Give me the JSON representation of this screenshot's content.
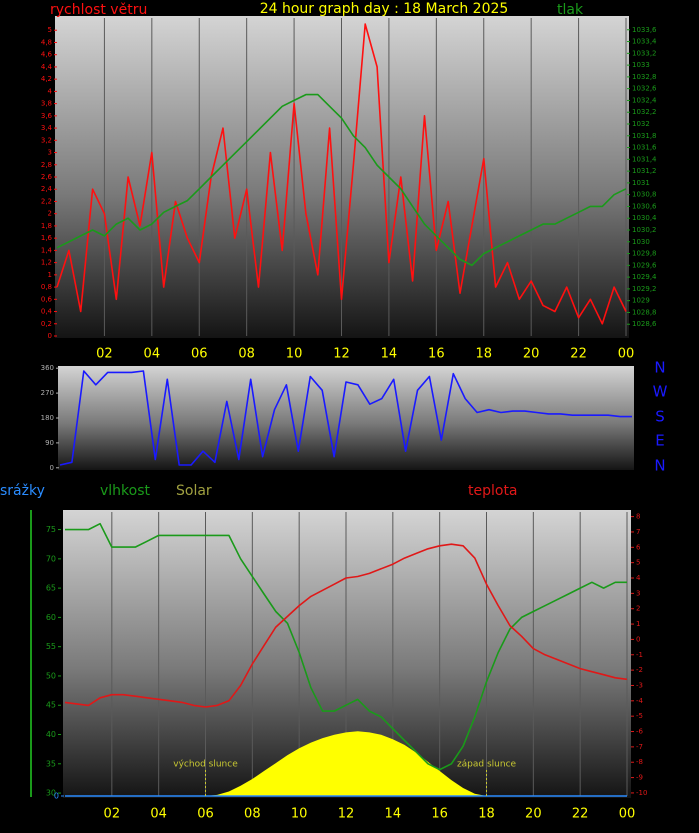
{
  "chart_data": [
    {
      "type": "line",
      "title": "24 hour graph day : 18 March 2025",
      "title_color": "#ffff00",
      "x": [
        0,
        0.5,
        1,
        1.5,
        2,
        2.5,
        3,
        3.5,
        4,
        4.5,
        5,
        5.5,
        6,
        6.5,
        7,
        7.5,
        8,
        8.5,
        9,
        9.5,
        10,
        10.5,
        11,
        11.5,
        12,
        12.5,
        13,
        13.5,
        14,
        14.5,
        15,
        15.5,
        16,
        16.5,
        17,
        17.5,
        18,
        18.5,
        19,
        19.5,
        20,
        20.5,
        21,
        21.5,
        22,
        22.5,
        23,
        23.5,
        24
      ],
      "xlim": [
        0,
        24
      ],
      "xticks": [
        {
          "value": 2,
          "label": "02"
        },
        {
          "value": 4,
          "label": "04"
        },
        {
          "value": 6,
          "label": "06"
        },
        {
          "value": 8,
          "label": "08"
        },
        10,
        12,
        14,
        16,
        18,
        20,
        22,
        {
          "value": 24,
          "label": "00"
        }
      ],
      "xtick_color": "#ffff00",
      "grid": true,
      "ylim": [
        0,
        5.2
      ],
      "yticks": [
        0,
        {
          "value": 0.2,
          "label": "0,2"
        },
        {
          "value": 0.4,
          "label": "0,4"
        },
        {
          "value": 0.6,
          "label": "0,6"
        },
        {
          "value": 0.8,
          "label": "0,8"
        },
        1,
        {
          "value": 1.2,
          "label": "1,2"
        },
        {
          "value": 1.4,
          "label": "1,4"
        },
        {
          "value": 1.6,
          "label": "1,6"
        },
        {
          "value": 1.8,
          "label": "1,8"
        },
        2,
        {
          "value": 2.2,
          "label": "2,2"
        },
        {
          "value": 2.4,
          "label": "2,4"
        },
        {
          "value": 2.6,
          "label": "2,6"
        },
        {
          "value": 2.8,
          "label": "2,8"
        },
        3,
        {
          "value": 3.2,
          "label": "3,2"
        },
        {
          "value": 3.4,
          "label": "3,4"
        },
        {
          "value": 3.6,
          "label": "3,6"
        },
        {
          "value": 3.8,
          "label": "3,8"
        },
        4,
        {
          "value": 4.2,
          "label": "4,2"
        },
        {
          "value": 4.4,
          "label": "4,4"
        },
        {
          "value": 4.6,
          "label": "4,6"
        },
        {
          "value": 4.8,
          "label": "4,8"
        },
        5
      ],
      "y2lim": [
        1028.4,
        1033.8
      ],
      "y2ticks": [
        {
          "value": 1028.6,
          "label": "1028,6"
        },
        {
          "value": 1028.8,
          "label": "1028,8"
        },
        1029,
        {
          "value": 1029.2,
          "label": "1029,2"
        },
        {
          "value": 1029.4,
          "label": "1029,4"
        },
        {
          "value": 1029.6,
          "label": "1029,6"
        },
        {
          "value": 1029.8,
          "label": "1029,8"
        },
        1030,
        {
          "value": 1030.2,
          "label": "1030,2"
        },
        {
          "value": 1030.4,
          "label": "1030,4"
        },
        {
          "value": 1030.6,
          "label": "1030,6"
        },
        {
          "value": 1030.8,
          "label": "1030,8"
        },
        1031,
        {
          "value": 1031.2,
          "label": "1031,2"
        },
        {
          "value": 1031.4,
          "label": "1031,4"
        },
        {
          "value": 1031.6,
          "label": "1031,6"
        },
        {
          "value": 1031.8,
          "label": "1031,8"
        },
        1032,
        {
          "value": 1032.2,
          "label": "1032,2"
        },
        {
          "value": 1032.4,
          "label": "1032,4"
        },
        {
          "value": 1032.6,
          "label": "1032,6"
        },
        {
          "value": 1032.8,
          "label": "1032,8"
        },
        1033,
        {
          "value": 1033.2,
          "label": "1033,2"
        },
        {
          "value": 1033.4,
          "label": "1033,4"
        },
        {
          "value": 1033.6,
          "label": "1033,6"
        }
      ],
      "series": [
        {
          "name": "rychlost větru",
          "color": "#ff1010",
          "axis": "y",
          "values": [
            0.8,
            1.4,
            0.4,
            2.4,
            2.0,
            0.6,
            2.6,
            1.8,
            3.0,
            0.8,
            2.2,
            1.6,
            1.2,
            2.6,
            3.4,
            1.6,
            2.4,
            0.8,
            3.0,
            1.4,
            3.8,
            2.0,
            1.0,
            3.4,
            0.6,
            2.8,
            5.1,
            4.4,
            1.2,
            2.6,
            0.9,
            3.6,
            1.4,
            2.2,
            0.7,
            1.8,
            2.9,
            0.8,
            1.2,
            0.6,
            0.9,
            0.5,
            0.4,
            0.8,
            0.3,
            0.6,
            0.2,
            0.8,
            0.4
          ]
        },
        {
          "name": "tlak",
          "color": "#1a9a1a",
          "axis": "y2",
          "values": [
            1029.9,
            1030.0,
            1030.1,
            1030.2,
            1030.1,
            1030.3,
            1030.4,
            1030.2,
            1030.3,
            1030.5,
            1030.6,
            1030.7,
            1030.9,
            1031.1,
            1031.3,
            1031.5,
            1031.7,
            1031.9,
            1032.1,
            1032.3,
            1032.4,
            1032.5,
            1032.5,
            1032.3,
            1032.1,
            1031.8,
            1031.6,
            1031.3,
            1031.1,
            1030.9,
            1030.6,
            1030.3,
            1030.1,
            1029.9,
            1029.7,
            1029.6,
            1029.8,
            1029.9,
            1030.0,
            1030.1,
            1030.2,
            1030.3,
            1030.3,
            1030.4,
            1030.5,
            1030.6,
            1030.6,
            1030.8,
            1030.9
          ]
        }
      ]
    },
    {
      "type": "line",
      "x": [
        0,
        0.5,
        1,
        1.5,
        2,
        2.5,
        3,
        3.5,
        4,
        4.5,
        5,
        5.5,
        6,
        6.5,
        7,
        7.5,
        8,
        8.5,
        9,
        9.5,
        10,
        10.5,
        11,
        11.5,
        12,
        12.5,
        13,
        13.5,
        14,
        14.5,
        15,
        15.5,
        16,
        16.5,
        17,
        17.5,
        18,
        18.5,
        19,
        19.5,
        20,
        20.5,
        21,
        21.5,
        22,
        22.5,
        23,
        23.5,
        24
      ],
      "xlim": [
        0,
        24
      ],
      "ylim": [
        -8,
        368
      ],
      "yticks": [
        0,
        90,
        180,
        270,
        360
      ],
      "ytick_color": "#b0b0b0",
      "compass": [
        "N",
        "W",
        "S",
        "E",
        "N"
      ],
      "compass_color": "#1a1aff",
      "series": [
        {
          "color": "#1a1aff",
          "axis": "y",
          "values": [
            10,
            20,
            350,
            300,
            345,
            345,
            345,
            350,
            30,
            320,
            10,
            10,
            60,
            20,
            240,
            30,
            320,
            40,
            210,
            300,
            60,
            330,
            280,
            40,
            310,
            300,
            230,
            250,
            320,
            60,
            280,
            330,
            100,
            340,
            250,
            200,
            210,
            200,
            205,
            205,
            200,
            195,
            195,
            190,
            190,
            190,
            190,
            185,
            185
          ]
        }
      ]
    },
    {
      "type": "line",
      "x": [
        0,
        0.5,
        1,
        1.5,
        2,
        2.5,
        3,
        3.5,
        4,
        4.5,
        5,
        5.5,
        6,
        6.5,
        7,
        7.5,
        8,
        8.5,
        9,
        9.5,
        10,
        10.5,
        11,
        11.5,
        12,
        12.5,
        13,
        13.5,
        14,
        14.5,
        15,
        15.5,
        16,
        16.5,
        17,
        17.5,
        18,
        18.5,
        19,
        19.5,
        20,
        20.5,
        21,
        21.5,
        22,
        22.5,
        23,
        23.5,
        24
      ],
      "xlim": [
        0,
        24
      ],
      "xticks": [
        {
          "value": 2,
          "label": "02"
        },
        {
          "value": 4,
          "label": "04"
        },
        {
          "value": 6,
          "label": "06"
        },
        {
          "value": 8,
          "label": "08"
        },
        10,
        12,
        14,
        16,
        18,
        20,
        22,
        {
          "value": 24,
          "label": "00"
        }
      ],
      "xtick_color": "#ffff00",
      "grid": true,
      "ylim": [
        29.5,
        78
      ],
      "yticks": [
        30,
        35,
        40,
        45,
        50,
        55,
        60,
        65,
        70,
        75
      ],
      "y2lim": [
        -10.2,
        8.3
      ],
      "y2ticks": [
        -10,
        -9,
        -8,
        -7,
        -6,
        -5,
        -4,
        -3,
        -2,
        -1,
        0,
        1,
        2,
        3,
        4,
        5,
        6,
        7,
        8
      ],
      "y3lim": [
        0,
        10
      ],
      "y3ticks": [
        0
      ],
      "y4lim": [
        0,
        2500
      ],
      "annotations": [
        {
          "text": "východ slunce",
          "x": 6
        },
        {
          "text": "západ slunce",
          "x": 18
        }
      ],
      "annotation_color": "#c8c832",
      "series": [
        {
          "name": "srážky",
          "color": "#2a8cff",
          "axis": "y3",
          "values": [
            0,
            0,
            0,
            0,
            0,
            0,
            0,
            0,
            0,
            0,
            0,
            0,
            0,
            0,
            0,
            0,
            0,
            0,
            0,
            0,
            0,
            0,
            0,
            0,
            0,
            0,
            0,
            0,
            0,
            0,
            0,
            0,
            0,
            0,
            0,
            0,
            0,
            0,
            0,
            0,
            0,
            0,
            0,
            0,
            0,
            0,
            0,
            0,
            0
          ]
        },
        {
          "name": "vlhkost",
          "color": "#1a9a1a",
          "axis": "y",
          "values": [
            75,
            75,
            75,
            76,
            72,
            72,
            72,
            73,
            74,
            74,
            74,
            74,
            74,
            74,
            74,
            70,
            67,
            64,
            61,
            59,
            54,
            48,
            44,
            44,
            45,
            46,
            44,
            43,
            41,
            39,
            37,
            35,
            34,
            35,
            38,
            43,
            49,
            54,
            58,
            60,
            61,
            62,
            63,
            64,
            65,
            66,
            65,
            66,
            66
          ]
        },
        {
          "name": "Solar",
          "color": "#ffff00",
          "label_color": "#a0a040",
          "style": "area",
          "axis": "y4",
          "values": [
            0,
            0,
            0,
            0,
            0,
            0,
            0,
            0,
            0,
            0,
            0,
            0,
            0,
            10,
            40,
            90,
            150,
            220,
            290,
            360,
            420,
            470,
            510,
            540,
            560,
            570,
            560,
            540,
            500,
            450,
            380,
            300,
            220,
            140,
            70,
            20,
            0,
            0,
            0,
            0,
            0,
            0,
            0,
            0,
            0,
            0,
            0,
            0,
            0
          ]
        },
        {
          "name": "teplota",
          "color": "#e01818",
          "axis": "y2",
          "values": [
            -4.1,
            -4.2,
            -4.3,
            -3.8,
            -3.6,
            -3.6,
            -3.7,
            -3.8,
            -3.9,
            -4.0,
            -4.1,
            -4.3,
            -4.4,
            -4.3,
            -4.0,
            -3.0,
            -1.6,
            -0.4,
            0.8,
            1.5,
            2.2,
            2.8,
            3.2,
            3.6,
            4.0,
            4.1,
            4.3,
            4.6,
            4.9,
            5.3,
            5.6,
            5.9,
            6.1,
            6.2,
            6.1,
            5.3,
            3.6,
            2.2,
            0.9,
            0.2,
            -0.6,
            -1.0,
            -1.3,
            -1.6,
            -1.9,
            -2.1,
            -2.3,
            -2.5,
            -2.6
          ]
        }
      ]
    }
  ]
}
